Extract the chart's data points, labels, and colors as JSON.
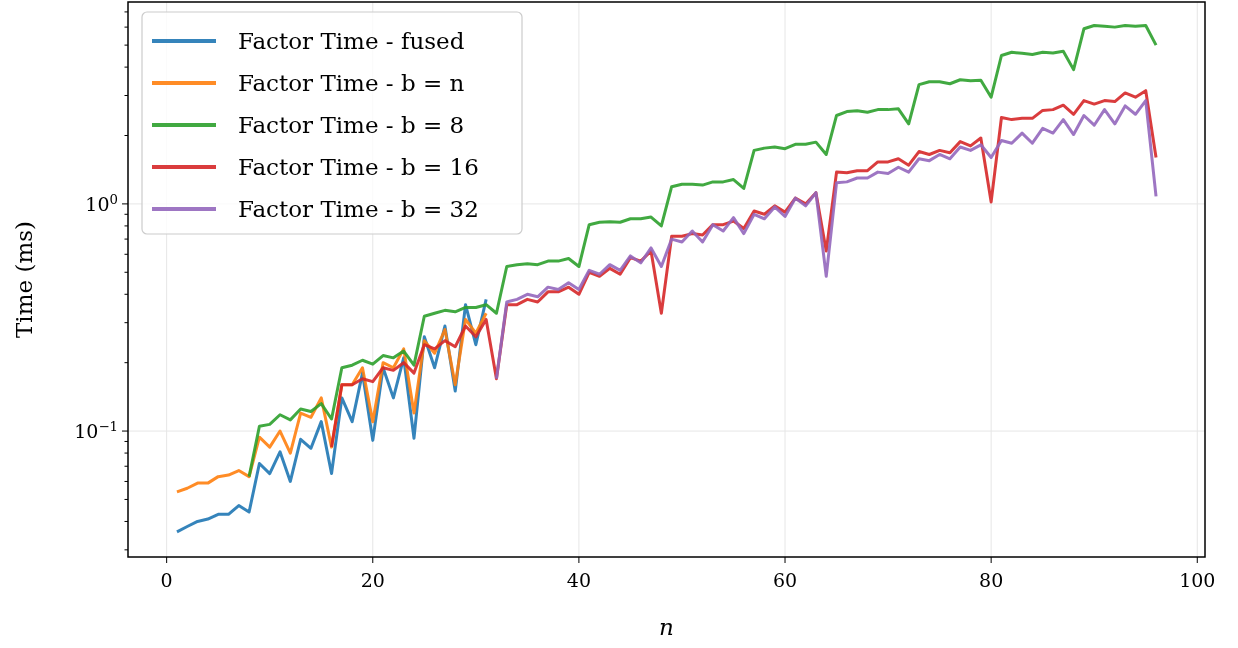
{
  "chart_data": {
    "type": "line",
    "xlabel": "n",
    "ylabel": "Time (ms)",
    "log": "y",
    "grid": true,
    "legend": "top left",
    "line_style": "solid",
    "xlim": [
      -3.75,
      100.75
    ],
    "xticks": [
      0,
      20,
      40,
      60,
      80,
      100
    ],
    "ylim": [
      0.0279,
      7.74
    ],
    "yticks": [
      {
        "value": 0.03,
        "label": null
      },
      {
        "value": 0.04,
        "label": null
      },
      {
        "value": 0.05,
        "label": null
      },
      {
        "value": 0.06,
        "label": null
      },
      {
        "value": 0.07,
        "label": null
      },
      {
        "value": 0.08,
        "label": null
      },
      {
        "value": 0.09,
        "label": null
      },
      {
        "value": 0.1,
        "label": "10$^{−1}$"
      },
      {
        "value": 0.2,
        "label": null
      },
      {
        "value": 0.3,
        "label": null
      },
      {
        "value": 0.4,
        "label": null
      },
      {
        "value": 0.5,
        "label": null
      },
      {
        "value": 0.6,
        "label": null
      },
      {
        "value": 0.7,
        "label": null
      },
      {
        "value": 0.8,
        "label": null
      },
      {
        "value": 0.9,
        "label": null
      },
      {
        "value": 1,
        "label": "10$^{0}$"
      },
      {
        "value": 2,
        "label": null
      },
      {
        "value": 3,
        "label": null
      },
      {
        "value": 4,
        "label": null
      },
      {
        "value": 5,
        "label": null
      },
      {
        "value": 6,
        "label": null
      },
      {
        "value": 7,
        "label": null
      }
    ],
    "series": [
      {
        "name": "Factor Time - fused",
        "color": "#1f77b4",
        "x": [
          1,
          2,
          3,
          4,
          5,
          6,
          7,
          8,
          9,
          10,
          11,
          12,
          13,
          14,
          15,
          16,
          17,
          18,
          19,
          20,
          21,
          22,
          23,
          24,
          25,
          26,
          27,
          28,
          29,
          30,
          31
        ],
        "values": [
          0.036,
          0.038,
          0.04,
          0.041,
          0.043,
          0.043,
          0.047,
          0.044,
          0.072,
          0.065,
          0.081,
          0.06,
          0.092,
          0.084,
          0.11,
          0.065,
          0.14,
          0.11,
          0.18,
          0.091,
          0.19,
          0.14,
          0.21,
          0.093,
          0.26,
          0.19,
          0.29,
          0.15,
          0.36,
          0.24,
          0.38
        ]
      },
      {
        "name": "Factor Time - b = n",
        "color": "#ff7f0e",
        "x": [
          1,
          2,
          3,
          4,
          5,
          6,
          7,
          8,
          9,
          10,
          11,
          12,
          13,
          14,
          15,
          16,
          17,
          18,
          19,
          20,
          21,
          22,
          23,
          24,
          25,
          26,
          27,
          28,
          29,
          30,
          31
        ],
        "values": [
          0.054,
          0.056,
          0.059,
          0.059,
          0.063,
          0.064,
          0.067,
          0.063,
          0.094,
          0.085,
          0.1,
          0.08,
          0.12,
          0.115,
          0.14,
          0.085,
          0.16,
          0.16,
          0.19,
          0.11,
          0.2,
          0.19,
          0.23,
          0.12,
          0.25,
          0.22,
          0.28,
          0.16,
          0.31,
          0.27,
          0.33
        ]
      },
      {
        "name": "Factor Time - b = 8",
        "color": "#2ca02c",
        "x": [
          8,
          9,
          10,
          11,
          12,
          13,
          14,
          15,
          16,
          17,
          18,
          19,
          20,
          21,
          22,
          23,
          24,
          25,
          26,
          27,
          28,
          29,
          30,
          31,
          32,
          33,
          34,
          35,
          36,
          37,
          38,
          39,
          40,
          41,
          42,
          43,
          44,
          45,
          46,
          47,
          48,
          49,
          50,
          51,
          52,
          53,
          54,
          55,
          56,
          57,
          58,
          59,
          60,
          61,
          62,
          63,
          64,
          65,
          66,
          67,
          68,
          69,
          70,
          71,
          72,
          73,
          74,
          75,
          76,
          77,
          78,
          79,
          80,
          81,
          82,
          83,
          84,
          85,
          86,
          87,
          88,
          89,
          90,
          91,
          92,
          93,
          94,
          95,
          96
        ],
        "values": [
          0.063,
          0.105,
          0.107,
          0.118,
          0.112,
          0.125,
          0.122,
          0.132,
          0.113,
          0.19,
          0.195,
          0.205,
          0.197,
          0.215,
          0.21,
          0.225,
          0.195,
          0.32,
          0.33,
          0.34,
          0.335,
          0.35,
          0.35,
          0.36,
          0.33,
          0.53,
          0.54,
          0.545,
          0.54,
          0.56,
          0.56,
          0.575,
          0.53,
          0.81,
          0.83,
          0.835,
          0.83,
          0.86,
          0.86,
          0.875,
          0.8,
          1.19,
          1.22,
          1.22,
          1.21,
          1.25,
          1.25,
          1.28,
          1.17,
          1.72,
          1.76,
          1.78,
          1.75,
          1.83,
          1.83,
          1.87,
          1.65,
          2.45,
          2.55,
          2.57,
          2.53,
          2.6,
          2.6,
          2.62,
          2.25,
          3.35,
          3.45,
          3.45,
          3.38,
          3.52,
          3.48,
          3.5,
          2.95,
          4.5,
          4.65,
          4.6,
          4.55,
          4.65,
          4.62,
          4.7,
          3.9,
          5.9,
          6.1,
          6.05,
          6.0,
          6.1,
          6.05,
          6.1,
          5.0
        ]
      },
      {
        "name": "Factor Time - b = 16",
        "color": "#d62728",
        "x": [
          16,
          17,
          18,
          19,
          20,
          21,
          22,
          23,
          24,
          25,
          26,
          27,
          28,
          29,
          30,
          31,
          32,
          33,
          34,
          35,
          36,
          37,
          38,
          39,
          40,
          41,
          42,
          43,
          44,
          45,
          46,
          47,
          48,
          49,
          50,
          51,
          52,
          53,
          54,
          55,
          56,
          57,
          58,
          59,
          60,
          61,
          62,
          63,
          64,
          65,
          66,
          67,
          68,
          69,
          70,
          71,
          72,
          73,
          74,
          75,
          76,
          77,
          78,
          79,
          80,
          81,
          82,
          83,
          84,
          85,
          86,
          87,
          88,
          89,
          90,
          91,
          92,
          93,
          94,
          95,
          96
        ],
        "values": [
          0.085,
          0.16,
          0.16,
          0.17,
          0.165,
          0.19,
          0.185,
          0.2,
          0.18,
          0.24,
          0.23,
          0.25,
          0.235,
          0.29,
          0.26,
          0.31,
          0.17,
          0.36,
          0.36,
          0.38,
          0.37,
          0.41,
          0.41,
          0.43,
          0.4,
          0.5,
          0.48,
          0.52,
          0.49,
          0.58,
          0.56,
          0.62,
          0.33,
          0.72,
          0.72,
          0.74,
          0.73,
          0.81,
          0.81,
          0.84,
          0.78,
          0.93,
          0.9,
          0.98,
          0.92,
          1.06,
          1.0,
          1.12,
          0.62,
          1.38,
          1.37,
          1.4,
          1.4,
          1.53,
          1.53,
          1.58,
          1.48,
          1.7,
          1.65,
          1.72,
          1.68,
          1.88,
          1.8,
          1.95,
          1.02,
          2.4,
          2.35,
          2.38,
          2.38,
          2.58,
          2.6,
          2.72,
          2.48,
          2.85,
          2.75,
          2.85,
          2.82,
          3.08,
          2.95,
          3.15,
          1.6
        ]
      },
      {
        "name": "Factor Time - b = 32",
        "color": "#9467bd",
        "x": [
          32,
          33,
          34,
          35,
          36,
          37,
          38,
          39,
          40,
          41,
          42,
          43,
          44,
          45,
          46,
          47,
          48,
          49,
          50,
          51,
          52,
          53,
          54,
          55,
          56,
          57,
          58,
          59,
          60,
          61,
          62,
          63,
          64,
          65,
          66,
          67,
          68,
          69,
          70,
          71,
          72,
          73,
          74,
          75,
          76,
          77,
          78,
          79,
          80,
          81,
          82,
          83,
          84,
          85,
          86,
          87,
          88,
          89,
          90,
          91,
          92,
          93,
          94,
          95,
          96
        ],
        "values": [
          0.17,
          0.37,
          0.38,
          0.4,
          0.39,
          0.43,
          0.42,
          0.45,
          0.42,
          0.51,
          0.49,
          0.54,
          0.51,
          0.59,
          0.55,
          0.64,
          0.53,
          0.7,
          0.68,
          0.76,
          0.68,
          0.81,
          0.76,
          0.87,
          0.74,
          0.9,
          0.86,
          0.97,
          0.88,
          1.06,
          0.98,
          1.12,
          0.48,
          1.24,
          1.25,
          1.3,
          1.3,
          1.38,
          1.36,
          1.45,
          1.38,
          1.58,
          1.55,
          1.65,
          1.58,
          1.78,
          1.72,
          1.82,
          1.6,
          1.9,
          1.85,
          2.05,
          1.85,
          2.15,
          2.05,
          2.35,
          2.02,
          2.45,
          2.22,
          2.6,
          2.25,
          2.7,
          2.48,
          2.85,
          1.08
        ]
      }
    ]
  }
}
